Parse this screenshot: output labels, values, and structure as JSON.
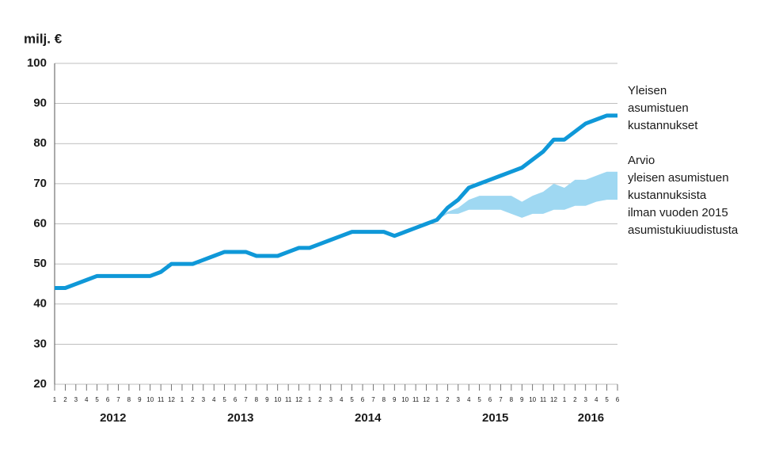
{
  "chart_data": {
    "type": "line",
    "y_label": "milj. €",
    "ylim": [
      20,
      100
    ],
    "yticks": [
      20,
      30,
      40,
      50,
      60,
      70,
      80,
      90,
      100
    ],
    "grid": true,
    "categories": [
      "1",
      "2",
      "3",
      "4",
      "5",
      "6",
      "7",
      "8",
      "9",
      "10",
      "11",
      "12",
      "1",
      "2",
      "3",
      "4",
      "5",
      "6",
      "7",
      "8",
      "9",
      "10",
      "11",
      "12",
      "1",
      "2",
      "3",
      "4",
      "5",
      "6",
      "7",
      "8",
      "9",
      "10",
      "11",
      "12",
      "1",
      "2",
      "3",
      "4",
      "5",
      "6",
      "7",
      "8",
      "9",
      "10",
      "11",
      "12",
      "1",
      "2",
      "3",
      "4",
      "5",
      "6"
    ],
    "years": [
      "2012",
      "2013",
      "2014",
      "2015",
      "2016"
    ],
    "series": [
      {
        "name": "Yleisen\nasumistuen\nkustannukset",
        "color": "#0f98d8",
        "values": [
          44,
          44,
          45,
          46,
          47,
          47,
          47,
          47,
          47,
          47,
          48,
          50,
          50,
          50,
          51,
          52,
          53,
          53,
          53,
          52,
          52,
          52,
          53,
          54,
          54,
          55,
          56,
          57,
          58,
          58,
          58,
          58,
          57,
          58,
          59,
          60,
          61,
          64,
          66,
          69,
          70,
          71,
          72,
          73,
          74,
          76,
          78,
          81,
          81,
          83,
          85,
          86,
          87,
          87
        ]
      },
      {
        "name": "Arvio\nyleisen asumistuen\nkustannuksista\nilman vuoden 2015\nasumistukiuudistusta",
        "color": "#9fd8f2",
        "lower": [
          null,
          null,
          null,
          null,
          null,
          null,
          null,
          null,
          null,
          null,
          null,
          null,
          null,
          null,
          null,
          null,
          null,
          null,
          null,
          null,
          null,
          null,
          null,
          null,
          null,
          null,
          null,
          null,
          null,
          null,
          null,
          null,
          null,
          null,
          null,
          null,
          61,
          62.5,
          62.5,
          63.5,
          63.5,
          63.5,
          63.5,
          62.5,
          61.5,
          62.5,
          62.5,
          63.5,
          63.5,
          64.5,
          64.5,
          65.5,
          66,
          66
        ],
        "upper": [
          null,
          null,
          null,
          null,
          null,
          null,
          null,
          null,
          null,
          null,
          null,
          null,
          null,
          null,
          null,
          null,
          null,
          null,
          null,
          null,
          null,
          null,
          null,
          null,
          null,
          null,
          null,
          null,
          null,
          null,
          null,
          null,
          null,
          null,
          null,
          null,
          61,
          63,
          64,
          66,
          67,
          67,
          67,
          67,
          65.5,
          67,
          68,
          70,
          69,
          71,
          71,
          72,
          73,
          73
        ]
      }
    ]
  }
}
